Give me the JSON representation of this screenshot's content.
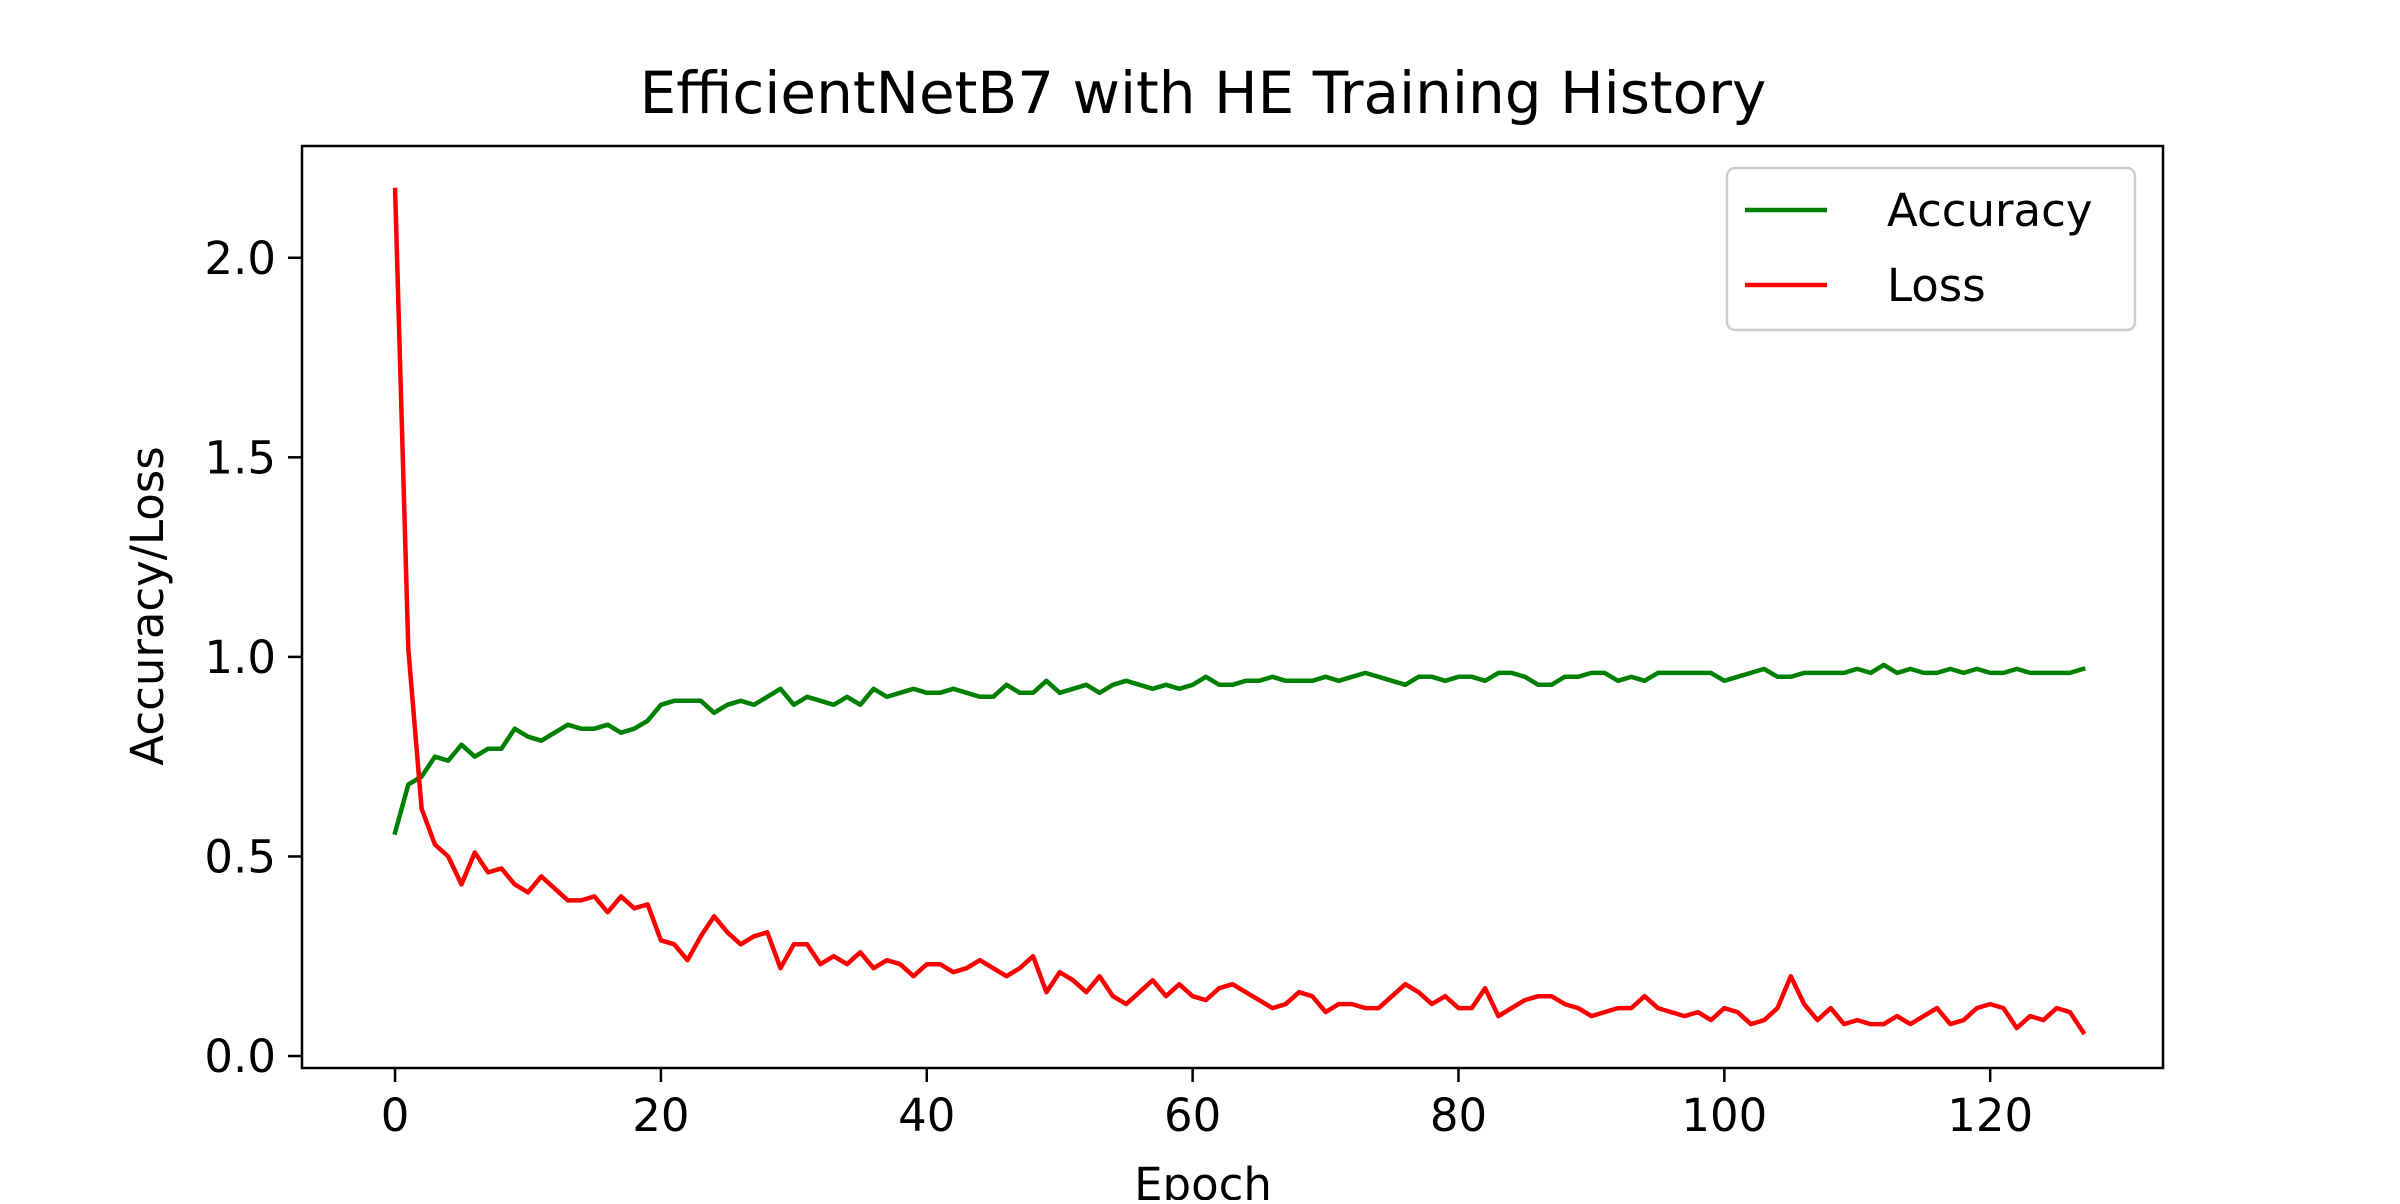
{
  "chart_data": {
    "type": "line",
    "title": "EfficientNetB7 with HE Training History",
    "xlabel": "Epoch",
    "ylabel": "Accuracy/Loss",
    "xlim": [
      -7,
      133
    ],
    "ylim": [
      -0.03,
      2.28
    ],
    "xticks": [
      0,
      20,
      40,
      60,
      80,
      100,
      120
    ],
    "yticks": [
      0.0,
      0.5,
      1.0,
      1.5,
      2.0
    ],
    "xtick_labels": [
      "0",
      "20",
      "40",
      "60",
      "80",
      "100",
      "120"
    ],
    "ytick_labels": [
      "0.0",
      "0.5",
      "1.0",
      "1.5",
      "2.0"
    ],
    "grid": false,
    "legend": "top-right",
    "x": [
      0,
      1,
      2,
      3,
      4,
      5,
      6,
      7,
      8,
      9,
      10,
      11,
      12,
      13,
      14,
      15,
      16,
      17,
      18,
      19,
      20,
      21,
      22,
      23,
      24,
      25,
      26,
      27,
      28,
      29,
      30,
      31,
      32,
      33,
      34,
      35,
      36,
      37,
      38,
      39,
      40,
      41,
      42,
      43,
      44,
      45,
      46,
      47,
      48,
      49,
      50,
      51,
      52,
      53,
      54,
      55,
      56,
      57,
      58,
      59,
      60,
      61,
      62,
      63,
      64,
      65,
      66,
      67,
      68,
      69,
      70,
      71,
      72,
      73,
      74,
      75,
      76,
      77,
      78,
      79,
      80,
      81,
      82,
      83,
      84,
      85,
      86,
      87,
      88,
      89,
      90,
      91,
      92,
      93,
      94,
      95,
      96,
      97,
      98,
      99,
      100,
      101,
      102,
      103,
      104,
      105,
      106,
      107,
      108,
      109,
      110,
      111,
      112,
      113,
      114,
      115,
      116,
      117,
      118,
      119,
      120,
      121,
      122,
      123,
      124,
      125,
      126,
      127
    ],
    "series": [
      {
        "name": "Accuracy",
        "color": "#008000",
        "values": [
          0.56,
          0.68,
          0.7,
          0.75,
          0.74,
          0.78,
          0.75,
          0.77,
          0.77,
          0.82,
          0.8,
          0.79,
          0.81,
          0.83,
          0.82,
          0.82,
          0.83,
          0.81,
          0.82,
          0.84,
          0.88,
          0.89,
          0.89,
          0.89,
          0.86,
          0.88,
          0.89,
          0.88,
          0.9,
          0.92,
          0.88,
          0.9,
          0.89,
          0.88,
          0.9,
          0.88,
          0.92,
          0.9,
          0.91,
          0.92,
          0.91,
          0.91,
          0.92,
          0.91,
          0.9,
          0.9,
          0.93,
          0.91,
          0.91,
          0.94,
          0.91,
          0.92,
          0.93,
          0.91,
          0.93,
          0.94,
          0.93,
          0.92,
          0.93,
          0.92,
          0.93,
          0.95,
          0.93,
          0.93,
          0.94,
          0.94,
          0.95,
          0.94,
          0.94,
          0.94,
          0.95,
          0.94,
          0.95,
          0.96,
          0.95,
          0.94,
          0.93,
          0.95,
          0.95,
          0.94,
          0.95,
          0.95,
          0.94,
          0.96,
          0.96,
          0.95,
          0.93,
          0.93,
          0.95,
          0.95,
          0.96,
          0.96,
          0.94,
          0.95,
          0.94,
          0.96,
          0.96,
          0.96,
          0.96,
          0.96,
          0.94,
          0.95,
          0.96,
          0.97,
          0.95,
          0.95,
          0.96,
          0.96,
          0.96,
          0.96,
          0.97,
          0.96,
          0.98,
          0.96,
          0.97,
          0.96,
          0.96,
          0.97,
          0.96,
          0.97,
          0.96,
          0.96,
          0.97,
          0.96,
          0.96,
          0.96,
          0.96,
          0.97
        ]
      },
      {
        "name": "Loss",
        "color": "#ff0000",
        "values": [
          2.17,
          1.02,
          0.62,
          0.53,
          0.5,
          0.43,
          0.51,
          0.46,
          0.47,
          0.43,
          0.41,
          0.45,
          0.42,
          0.39,
          0.39,
          0.4,
          0.36,
          0.4,
          0.37,
          0.38,
          0.29,
          0.28,
          0.24,
          0.3,
          0.35,
          0.31,
          0.28,
          0.3,
          0.31,
          0.22,
          0.28,
          0.28,
          0.23,
          0.25,
          0.23,
          0.26,
          0.22,
          0.24,
          0.23,
          0.2,
          0.23,
          0.23,
          0.21,
          0.22,
          0.24,
          0.22,
          0.2,
          0.22,
          0.25,
          0.16,
          0.21,
          0.19,
          0.16,
          0.2,
          0.15,
          0.13,
          0.16,
          0.19,
          0.15,
          0.18,
          0.15,
          0.14,
          0.17,
          0.18,
          0.16,
          0.14,
          0.12,
          0.13,
          0.16,
          0.15,
          0.11,
          0.13,
          0.13,
          0.12,
          0.12,
          0.15,
          0.18,
          0.16,
          0.13,
          0.15,
          0.12,
          0.12,
          0.17,
          0.1,
          0.12,
          0.14,
          0.15,
          0.15,
          0.13,
          0.12,
          0.1,
          0.11,
          0.12,
          0.12,
          0.15,
          0.12,
          0.11,
          0.1,
          0.11,
          0.09,
          0.12,
          0.11,
          0.08,
          0.09,
          0.12,
          0.2,
          0.13,
          0.09,
          0.12,
          0.08,
          0.09,
          0.08,
          0.08,
          0.1,
          0.08,
          0.1,
          0.12,
          0.08,
          0.09,
          0.12,
          0.13,
          0.12,
          0.07,
          0.1,
          0.09,
          0.12,
          0.11,
          0.06
        ]
      }
    ]
  }
}
